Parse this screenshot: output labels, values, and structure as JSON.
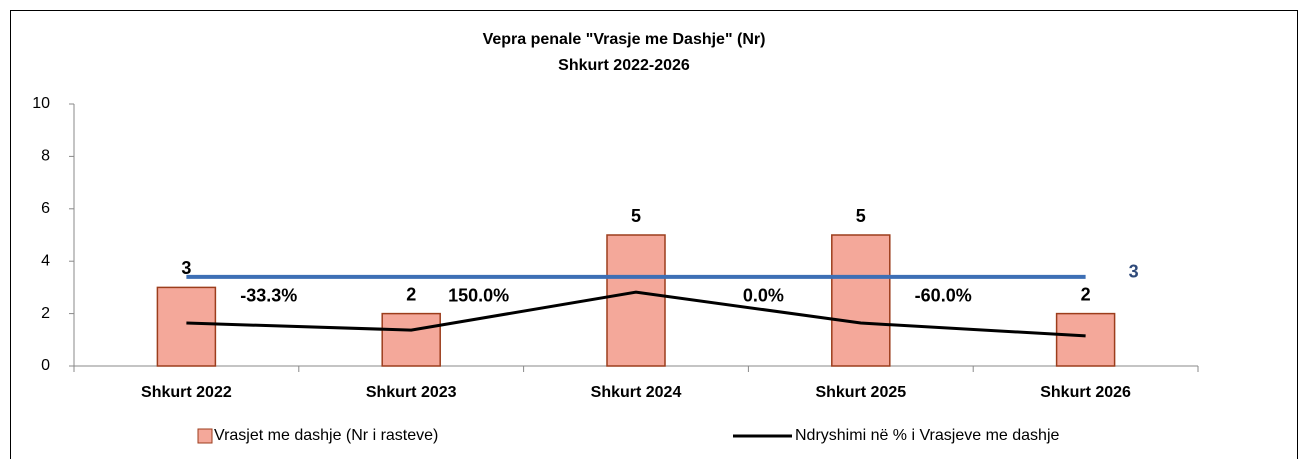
{
  "chart_data": {
    "type": "bar",
    "title": "Vepra penale \"Vrasje me Dashje\" (Nr)",
    "subtitle": "Shkurt 2022-2026",
    "categories": [
      "Shkurt 2022",
      "Shkurt 2023",
      "Shkurt 2024",
      "Shkurt 2025",
      "Shkurt 2026"
    ],
    "series": [
      {
        "name": "Vrasjet me dashje (Nr i rasteve)",
        "type": "bar",
        "color": "#f4a89a",
        "edge": "#9c3d1c",
        "values": [
          3,
          2,
          5,
          5,
          2
        ]
      },
      {
        "name": "Ndryshimi në % i Vrasjeve me dashje",
        "type": "line",
        "color": "#000000",
        "values": [
          1.64,
          1.37,
          2.82,
          1.64,
          1.15
        ]
      }
    ],
    "reference_line": {
      "value": 3.4,
      "label": "3",
      "color": "#3d6fb5",
      "label_color": "#2f4a7a"
    },
    "annotations": [
      "-33.3%",
      "150.0%",
      "0.0%",
      "-60.0%"
    ],
    "ylim": [
      0,
      10
    ],
    "yticks": [
      0,
      2,
      4,
      6,
      8,
      10
    ],
    "grid": false,
    "legend": "bottom"
  }
}
